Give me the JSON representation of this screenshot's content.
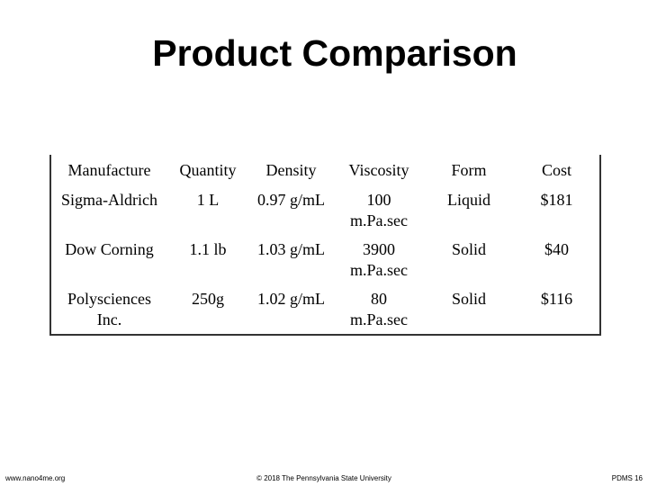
{
  "header": {
    "title": "Product Comparison"
  },
  "table": {
    "columns": [
      "Manufacture",
      "Quantity",
      "Density",
      "Viscosity",
      "Form",
      "Cost"
    ],
    "rows": [
      [
        "Sigma-Aldrich",
        "1 L",
        "0.97 g/mL",
        "100\nm.Pa.sec",
        "Liquid",
        "$181"
      ],
      [
        "Dow Corning",
        "1.1 lb",
        "1.03 g/mL",
        "3900\nm.Pa.sec",
        "Solid",
        "$40"
      ],
      [
        "Polysciences\nInc.",
        "250g",
        "1.02 g/mL",
        "80\nm.Pa.sec",
        "Solid",
        "$116"
      ]
    ]
  },
  "footer": {
    "left": "www.nano4me.org",
    "center": "© 2018 The Pennsylvania State University",
    "right": "PDMS 16"
  }
}
